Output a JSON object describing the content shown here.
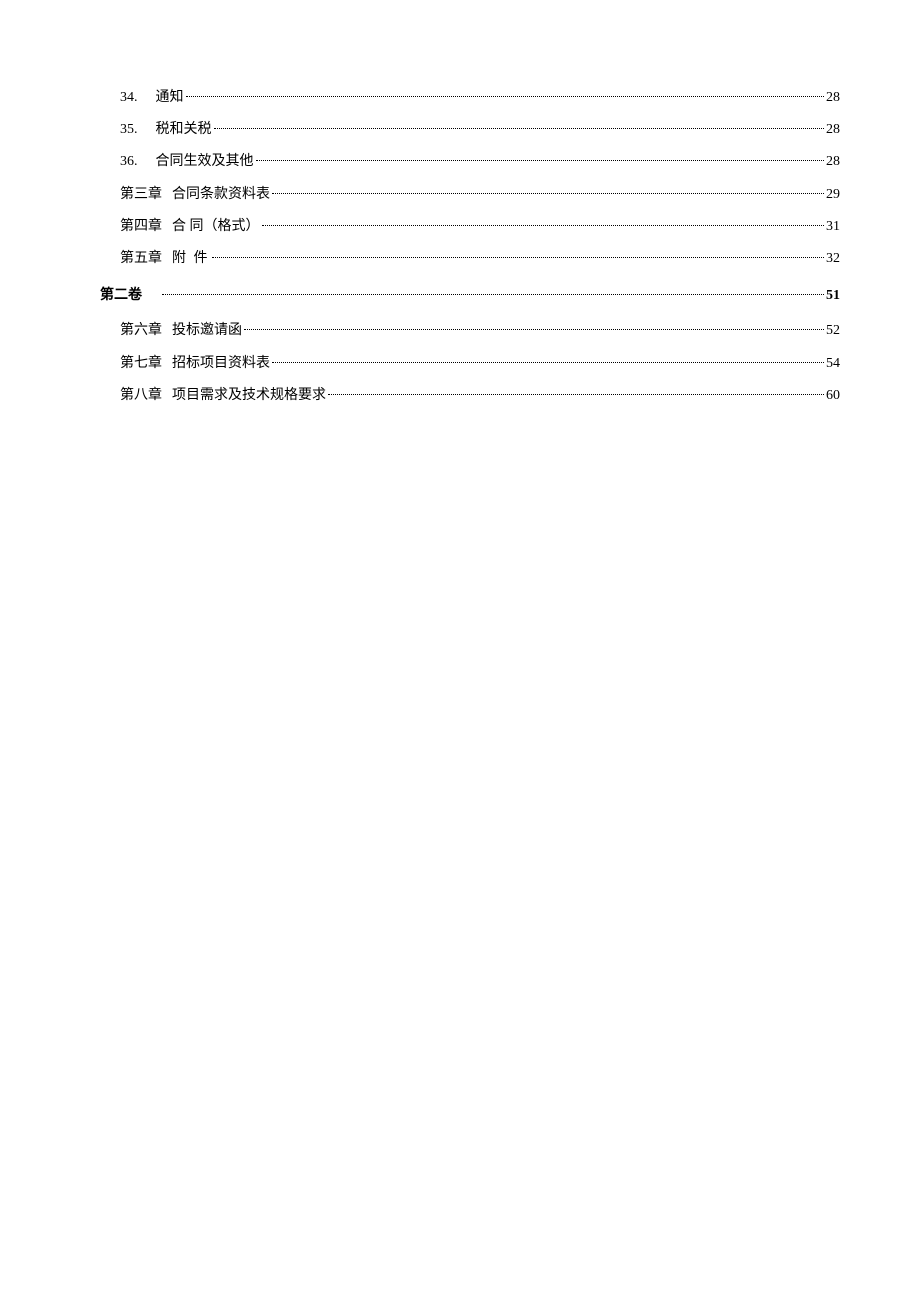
{
  "toc": {
    "entries": [
      {
        "number": "34.",
        "title": "通知",
        "page": "28",
        "indent": 1,
        "bold": false,
        "section": false,
        "spaced": false
      },
      {
        "number": "35.",
        "title": "税和关税",
        "page": "28",
        "indent": 1,
        "bold": false,
        "section": false,
        "spaced": false
      },
      {
        "number": "36.",
        "title": "合同生效及其他",
        "page": "28",
        "indent": 1,
        "bold": false,
        "section": false,
        "spaced": false
      },
      {
        "number": "第三章",
        "title": "合同条款资料表",
        "page": "29",
        "indent": 2,
        "bold": false,
        "section": false,
        "spaced": false
      },
      {
        "number": "第四章",
        "title": "合 同（格式）",
        "page": "31",
        "indent": 2,
        "bold": false,
        "section": false,
        "spaced": false
      },
      {
        "number": "第五章",
        "title": "附  件",
        "page": "32",
        "indent": 2,
        "bold": false,
        "section": false,
        "spaced": true
      },
      {
        "number": "第二卷",
        "title": "",
        "page": "51",
        "indent": 0,
        "bold": true,
        "section": true,
        "spaced": false
      },
      {
        "number": "第六章",
        "title": "投标邀请函",
        "page": "52",
        "indent": 2,
        "bold": false,
        "section": false,
        "spaced": false
      },
      {
        "number": "第七章",
        "title": "招标项目资料表",
        "page": "54",
        "indent": 2,
        "bold": false,
        "section": false,
        "spaced": false
      },
      {
        "number": "第八章",
        "title": "项目需求及技术规格要求",
        "page": "60",
        "indent": 2,
        "bold": false,
        "section": false,
        "spaced": false
      }
    ]
  },
  "colors": {
    "background": "#ffffff",
    "text": "#000000",
    "leader": "#000000"
  },
  "typography": {
    "fontFamily": "SimSun",
    "fontSize": 14,
    "lineHeight": 1.8
  }
}
